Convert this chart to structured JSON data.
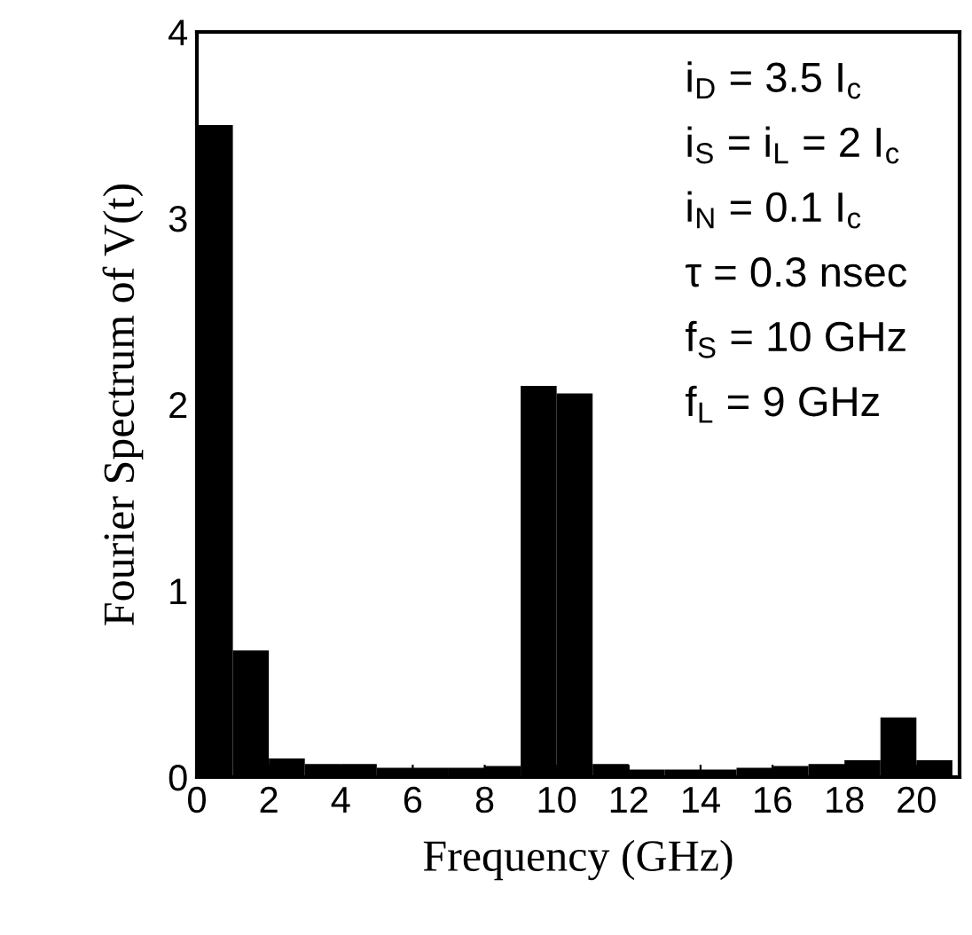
{
  "chart_data": {
    "type": "histogram",
    "xlabel": "Frequency (GHz)",
    "ylabel": "Fourier Spectrum of V(t)",
    "bins": [
      0,
      1,
      2,
      3,
      4,
      5,
      6,
      7,
      8,
      9,
      10,
      11,
      12,
      13,
      14,
      15,
      16,
      17,
      18,
      19,
      20,
      21
    ],
    "values": [
      3.5,
      0.68,
      0.1,
      0.07,
      0.07,
      0.05,
      0.05,
      0.05,
      0.06,
      2.1,
      2.06,
      0.07,
      0.04,
      0.04,
      0.04,
      0.05,
      0.06,
      0.07,
      0.09,
      0.32,
      0.09
    ],
    "color": "#000000",
    "xlim": [
      0,
      21.2
    ],
    "ylim": [
      0,
      4
    ],
    "xticks": [
      0,
      2,
      4,
      6,
      8,
      10,
      12,
      14,
      16,
      18,
      20
    ],
    "yticks": [
      0,
      1,
      2,
      3,
      4
    ],
    "grid": false,
    "legend": false,
    "annotations": [
      "i$_{D}$ = 3.5 I$_{c}$",
      "i$_{S}$ = i$_{L}$ = 2 I$_{c}$",
      "i$_{N}$ = 0.1 I$_{c}$",
      "τ = 0.3 nsec",
      "f$_{S}$ = 10 GHz",
      "f$_{L}$ = 9 GHz"
    ]
  }
}
